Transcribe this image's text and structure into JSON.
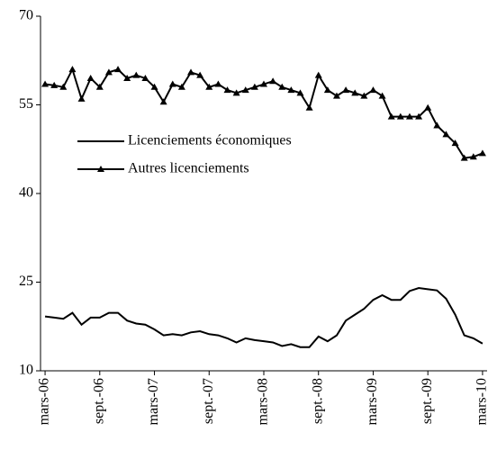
{
  "chart_data": {
    "type": "line",
    "categories": [
      "mars-06",
      null,
      null,
      null,
      null,
      null,
      "sept.-06",
      null,
      null,
      null,
      null,
      null,
      "mars-07",
      null,
      null,
      null,
      null,
      null,
      "sept.-07",
      null,
      null,
      null,
      null,
      null,
      "mars-08",
      null,
      null,
      null,
      null,
      null,
      "sept.-08",
      null,
      null,
      null,
      null,
      null,
      "mars-09",
      null,
      null,
      null,
      null,
      null,
      "sept.-09",
      null,
      null,
      null,
      null,
      null,
      "mars-10"
    ],
    "series": [
      {
        "name": "Licenciements économiques",
        "color": "#000000",
        "marker": "none",
        "values": [
          19.2,
          19,
          18.8,
          19.8,
          17.8,
          19,
          19,
          19.8,
          19.8,
          18.5,
          18,
          17.8,
          17,
          16,
          16.2,
          16,
          16.5,
          16.7,
          16.2,
          16,
          15.5,
          14.8,
          15.5,
          15.2,
          15,
          14.8,
          14.2,
          14.5,
          14,
          14,
          15.8,
          15,
          16,
          18.5,
          19.5,
          20.5,
          22,
          22.8,
          22,
          22,
          23.5,
          24,
          23.8,
          23.6,
          22.2,
          19.5,
          16,
          15.5,
          14.6
        ]
      },
      {
        "name": "Autres licenciements",
        "color": "#000000",
        "marker": "triangle",
        "values": [
          58.5,
          58.3,
          58,
          61,
          56,
          59.5,
          58,
          60.5,
          61,
          59.5,
          60,
          59.5,
          58,
          55.5,
          58.5,
          58,
          60.5,
          60,
          58,
          58.5,
          57.5,
          57,
          57.5,
          58,
          58.5,
          59,
          58,
          57.5,
          57,
          54.5,
          60,
          57.5,
          56.5,
          57.5,
          57,
          56.5,
          57.5,
          56.5,
          53,
          53,
          53,
          53,
          54.5,
          51.5,
          50,
          48.5,
          46,
          46.2,
          46.8
        ]
      }
    ],
    "ylim": [
      10,
      70
    ],
    "yticks": [
      10,
      25,
      40,
      55,
      70
    ],
    "grid": false,
    "legend": "upper-left"
  }
}
